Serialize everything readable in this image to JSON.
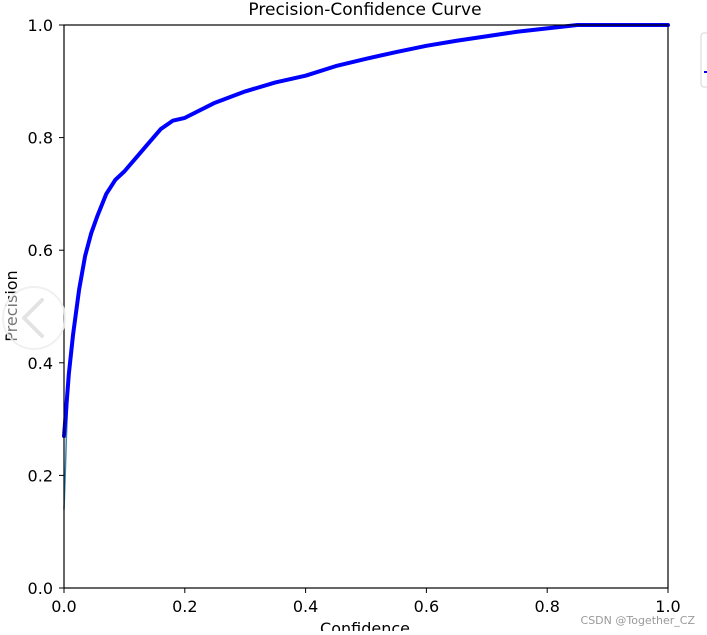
{
  "chart_data": {
    "type": "line",
    "title": "Precision-Confidence Curve",
    "xlabel": "Confidence",
    "ylabel": "Precision",
    "xlim": [
      0,
      1
    ],
    "ylim": [
      0,
      1
    ],
    "x_ticks": [
      0.0,
      0.2,
      0.4,
      0.6,
      0.8,
      1.0
    ],
    "y_ticks": [
      0.0,
      0.2,
      0.4,
      0.6,
      0.8,
      1.0
    ],
    "x_tick_labels": [
      "0.0",
      "0.2",
      "0.4",
      "0.6",
      "0.8",
      "1.0"
    ],
    "y_tick_labels": [
      "0.0",
      "0.2",
      "0.4",
      "0.6",
      "0.8",
      "1.0"
    ],
    "grid": false,
    "legend_position": "top-right",
    "series": [
      {
        "color": "#0000ff",
        "line_width": "thick",
        "x": [
          0.0,
          0.003,
          0.008,
          0.015,
          0.025,
          0.035,
          0.045,
          0.055,
          0.07,
          0.085,
          0.1,
          0.12,
          0.14,
          0.16,
          0.18,
          0.2,
          0.25,
          0.3,
          0.35,
          0.4,
          0.45,
          0.5,
          0.55,
          0.6,
          0.65,
          0.7,
          0.75,
          0.8,
          0.85,
          0.9,
          0.95,
          1.0
        ],
        "y": [
          0.27,
          0.31,
          0.38,
          0.45,
          0.53,
          0.59,
          0.63,
          0.66,
          0.7,
          0.725,
          0.74,
          0.765,
          0.79,
          0.815,
          0.83,
          0.835,
          0.862,
          0.882,
          0.898,
          0.91,
          0.927,
          0.94,
          0.952,
          0.963,
          0.972,
          0.98,
          0.988,
          0.994,
          1.0,
          1.0,
          1.0,
          1.0
        ]
      },
      {
        "color": "#3a87b8",
        "line_width": "thin",
        "x": [
          0.0,
          0.002,
          0.004,
          0.008,
          0.015,
          0.025,
          0.035,
          0.045,
          0.055,
          0.07,
          0.085,
          0.1,
          0.12,
          0.14,
          0.16,
          0.18,
          0.2,
          0.25,
          0.3,
          0.35,
          0.4,
          0.45,
          0.5,
          0.55,
          0.6,
          0.65,
          0.7,
          0.75,
          0.8,
          0.85,
          0.9,
          0.95,
          1.0
        ],
        "y": [
          0.14,
          0.2,
          0.27,
          0.38,
          0.45,
          0.53,
          0.59,
          0.63,
          0.66,
          0.7,
          0.725,
          0.74,
          0.765,
          0.79,
          0.815,
          0.83,
          0.835,
          0.862,
          0.882,
          0.898,
          0.91,
          0.927,
          0.94,
          0.952,
          0.963,
          0.972,
          0.98,
          0.988,
          0.994,
          1.0,
          1.0,
          1.0,
          1.0
        ]
      }
    ],
    "watermark": "CSDN @Together_CZ"
  }
}
